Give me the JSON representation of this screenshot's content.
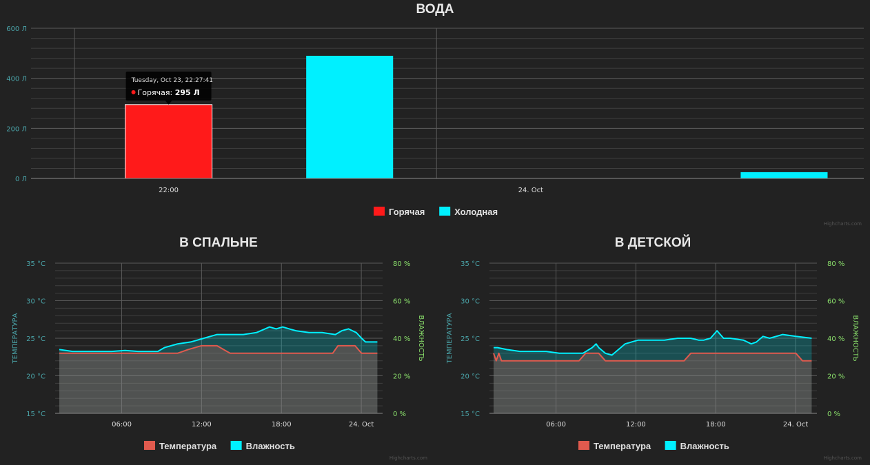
{
  "chart_data": [
    {
      "type": "bar",
      "title": "ВОДА",
      "y_axis": {
        "ticks": [
          "0 Л",
          "200 Л",
          "400 Л",
          "600 Л"
        ],
        "ylim": [
          0,
          600
        ],
        "unit": "Л",
        "color": "#4aa3a8"
      },
      "x_axis": {
        "ticks": [
          "22:00",
          "24. Oct"
        ]
      },
      "x_range_hours": [
        0,
        2.3
      ],
      "x_ticks_hours": [
        0,
        1
      ],
      "bar_width_hours": 0.24,
      "series": [
        {
          "name": "Горячая",
          "color": "#ff1a1a",
          "points": [
            {
              "x_hours": 0,
              "value": 295
            }
          ]
        },
        {
          "name": "Холодная",
          "color": "#00f0ff",
          "points": [
            {
              "x_hours": 0.5,
              "value": 490
            },
            {
              "x_hours": 1.7,
              "value": 25
            }
          ]
        }
      ],
      "tooltip": {
        "header": "Tuesday, Oct 23, 22:27:41",
        "series_name": "Горячая",
        "value": "295 Л",
        "marker_color": "#ff1a1a"
      },
      "legend": {
        "position": "bottom-center",
        "items": [
          {
            "name": "Горячая",
            "color": "#ff1a1a"
          },
          {
            "name": "Холодная",
            "color": "#00f0ff"
          }
        ]
      },
      "credits": "Highcharts.com",
      "grid": true
    },
    {
      "type": "area",
      "title": "В СПАЛЬНЕ",
      "y_axis_left": {
        "title": "ТЕМПЕРАТУРА",
        "ticks": [
          "15 °C",
          "20 °C",
          "25 °C",
          "30 °C",
          "35 °C"
        ],
        "ylim": [
          15,
          35
        ],
        "color": "#4aa3a8"
      },
      "y_axis_right": {
        "title": "ВЛАЖНОСТЬ",
        "ticks": [
          "0 %",
          "20 %",
          "40 %",
          "60 %",
          "80 %"
        ],
        "ylim": [
          0,
          80
        ],
        "color": "#8adf6b"
      },
      "x_axis": {
        "ticks": [
          "06:00",
          "12:00",
          "18:00",
          "24. Oct"
        ]
      },
      "x_range_hours": [
        0,
        24.6
      ],
      "x_ticks_hours": [
        5,
        11,
        17,
        23
      ],
      "series": [
        {
          "name": "Температура",
          "axis": "left",
          "color": "#e05a4e",
          "x_hours": [
            0,
            9,
            9.8,
            10.8,
            11.2,
            11.6,
            12,
            13,
            14,
            15,
            16,
            17,
            18,
            19,
            20,
            20.8,
            21.2,
            22.5,
            23,
            23.5,
            24.2
          ],
          "values": [
            23,
            23,
            23.5,
            24,
            24,
            24,
            24,
            23,
            23,
            23,
            23,
            23,
            23,
            23,
            23,
            23,
            24,
            24,
            23,
            23,
            23
          ]
        },
        {
          "name": "Влажность",
          "axis": "right",
          "color": "#00f0ff",
          "x_hours": [
            0,
            1,
            2,
            3,
            4,
            5,
            6,
            7,
            7.5,
            8,
            9,
            10,
            11,
            12,
            13,
            14,
            15,
            16,
            16.5,
            17,
            17.5,
            18,
            19,
            20,
            21,
            21.5,
            22,
            22.3,
            22.6,
            23,
            23.3,
            23.8,
            24.2
          ],
          "values": [
            34,
            33,
            33,
            33,
            33,
            33.5,
            33,
            33,
            33,
            35,
            37,
            38,
            40,
            42,
            42,
            42,
            43,
            46,
            45,
            46,
            45,
            44,
            43,
            43,
            42,
            44,
            45,
            44,
            43,
            40,
            38,
            38,
            38
          ]
        }
      ],
      "legend": {
        "position": "bottom-center",
        "items": [
          {
            "name": "Температура",
            "color": "#e05a4e"
          },
          {
            "name": "Влажность",
            "color": "#00f0ff"
          }
        ]
      },
      "credits": "Highcharts.com",
      "grid": true
    },
    {
      "type": "area",
      "title": "В ДЕТСКОЙ",
      "y_axis_left": {
        "title": "ТЕМПЕРАТУРА",
        "ticks": [
          "15 °C",
          "20 °C",
          "25 °C",
          "30 °C",
          "35 °C"
        ],
        "ylim": [
          15,
          35
        ],
        "color": "#4aa3a8"
      },
      "y_axis_right": {
        "title": "ВЛАЖНОСТЬ",
        "ticks": [
          "0 %",
          "20 %",
          "40 %",
          "60 %",
          "80 %"
        ],
        "ylim": [
          0,
          80
        ],
        "color": "#8adf6b"
      },
      "x_axis": {
        "ticks": [
          "06:00",
          "12:00",
          "18:00",
          "24. Oct"
        ]
      },
      "x_range_hours": [
        0,
        24.6
      ],
      "x_ticks_hours": [
        5,
        11,
        17,
        23
      ],
      "series": [
        {
          "name": "Температура",
          "axis": "left",
          "color": "#e05a4e",
          "x_hours": [
            0,
            0.2,
            0.4,
            0.6,
            1,
            2,
            3,
            4,
            5,
            6,
            6.5,
            7,
            7.5,
            8,
            8.5,
            9,
            10,
            11,
            12,
            13,
            14,
            14.5,
            15,
            16,
            17,
            18,
            19,
            20,
            21,
            22,
            23,
            23.5,
            24,
            24.2
          ],
          "values": [
            23,
            22,
            23,
            22,
            22,
            22,
            22,
            22,
            22,
            22,
            22,
            23,
            23,
            23,
            22,
            22,
            22,
            22,
            22,
            22,
            22,
            22,
            23,
            23,
            23,
            23,
            23,
            23,
            23,
            23,
            23,
            22,
            22,
            22
          ]
        },
        {
          "name": "Влажность",
          "axis": "right",
          "color": "#00f0ff",
          "x_hours": [
            0,
            0.3,
            1,
            2,
            3,
            4,
            5,
            6,
            6.8,
            7.5,
            7.8,
            8,
            8.5,
            9,
            10,
            11,
            12,
            13,
            14,
            15,
            15.6,
            16,
            16.5,
            17,
            17.5,
            18,
            19,
            19.3,
            19.6,
            20,
            20.5,
            21,
            22,
            23,
            24.2
          ],
          "values": [
            35,
            35,
            34,
            33,
            33,
            33,
            32,
            32,
            32,
            35,
            37,
            35,
            32,
            31,
            37,
            39,
            39,
            39,
            40,
            40,
            39,
            39,
            40,
            44,
            40,
            40,
            39,
            38,
            37,
            38,
            41,
            40,
            42,
            41,
            40
          ]
        }
      ],
      "legend": {
        "position": "bottom-center",
        "items": [
          {
            "name": "Температура",
            "color": "#e05a4e"
          },
          {
            "name": "Влажность",
            "color": "#00f0ff"
          }
        ]
      },
      "credits": "Highcharts.com",
      "grid": true
    }
  ]
}
